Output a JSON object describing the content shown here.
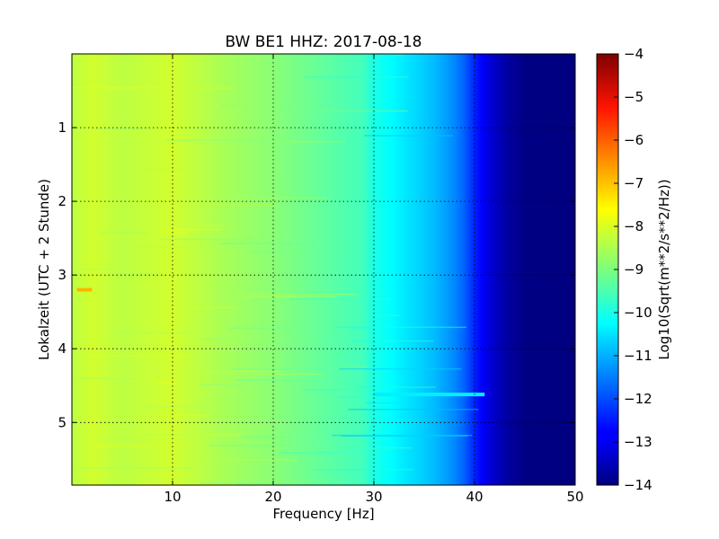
{
  "chart_data": {
    "type": "heatmap",
    "title": "BW BE1 HHZ: 2017-08-18",
    "xlabel": "Frequency [Hz]",
    "ylabel": "Lokalzeit (UTC + 2 Stunde)",
    "xlim": [
      0,
      50
    ],
    "ylim": [
      5.85,
      0
    ],
    "x_ticks": [
      10,
      20,
      30,
      40,
      50
    ],
    "y_ticks": [
      1,
      2,
      3,
      4,
      5
    ],
    "grid": true,
    "colormap": "jet",
    "colorbar": {
      "label": "Log10(Sqrt(m**2/s**2/Hz))",
      "range": [
        -14,
        -4
      ],
      "ticks": [
        -4,
        -5,
        -6,
        -7,
        -8,
        -9,
        -10,
        -11,
        -12,
        -13,
        -14
      ]
    },
    "frequency_profile": {
      "frequency_hz": [
        0,
        2,
        5,
        10,
        15,
        20,
        25,
        29,
        30,
        32,
        34,
        36,
        38,
        39,
        40,
        41,
        42,
        43,
        44,
        45,
        50
      ],
      "log10_amplitude": [
        -8.4,
        -8.2,
        -8.4,
        -8.2,
        -8.6,
        -8.9,
        -9.3,
        -9.6,
        -10.0,
        -10.3,
        -10.6,
        -10.9,
        -11.4,
        -11.8,
        -12.4,
        -12.9,
        -13.3,
        -13.6,
        -13.8,
        -13.95,
        -14.0
      ]
    },
    "annotations": [
      {
        "time_h": 3.2,
        "frequency_hz": [
          0.5,
          2
        ],
        "log10_amplitude": -7.0
      },
      {
        "time_h": 4.62,
        "frequency_hz": [
          30,
          41
        ],
        "log10_amplitude": -10.4
      }
    ]
  }
}
